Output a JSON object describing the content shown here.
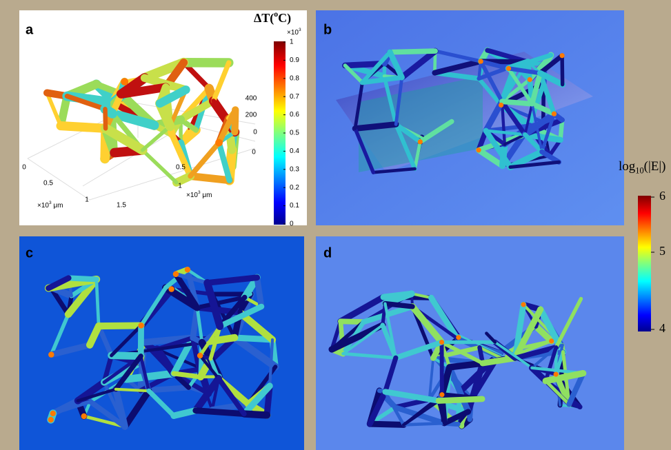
{
  "panels": {
    "a": {
      "label": "a",
      "colorbar": {
        "title": {
          "base": "ΔT(",
          "sup": "o",
          "tail": "C)"
        },
        "multiplier": {
          "base": "×10",
          "sup": "3"
        },
        "ticks": [
          "1",
          "0.9",
          "0.8",
          "0.7",
          "0.6",
          "0.5",
          "0.4",
          "0.3",
          "0.2",
          "0.1",
          "0"
        ]
      },
      "axes": {
        "x": {
          "ticks": [
            "0",
            "0.5",
            "1",
            "1.5"
          ],
          "unit": {
            "base": "×10",
            "sup": "3",
            "tail": " μm"
          }
        },
        "y": {
          "ticks": [
            "0",
            "0.5",
            "1"
          ],
          "unit": {
            "base": "×10",
            "sup": "3",
            "tail": " μm"
          }
        },
        "z": {
          "ticks": [
            "400",
            "200",
            "0"
          ]
        }
      }
    },
    "b": {
      "label": "b"
    },
    "c": {
      "label": "c"
    },
    "d": {
      "label": "d"
    },
    "shared_colorbar": {
      "title": {
        "base": "log",
        "sub": "10",
        "tail": "(|E|)"
      },
      "ticks": [
        "6",
        "5",
        "4"
      ]
    }
  }
}
